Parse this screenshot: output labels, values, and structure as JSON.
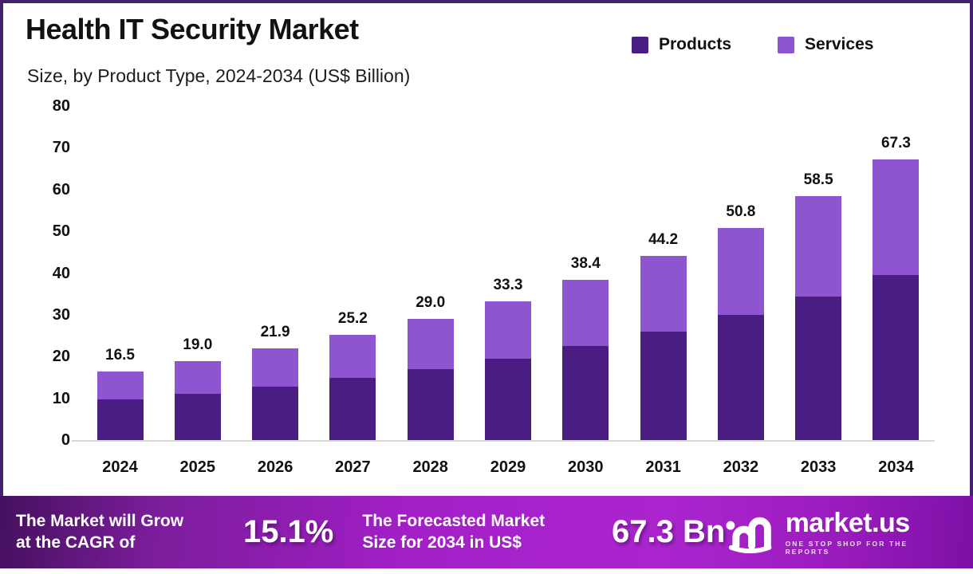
{
  "header": {
    "title": "Health IT Security Market",
    "subtitle": "Size, by Product Type, 2024-2034 (US$ Billion)"
  },
  "legend": [
    {
      "label": "Products",
      "color": "#4a1d82"
    },
    {
      "label": "Services",
      "color": "#8f55d1"
    }
  ],
  "chart_data": {
    "type": "bar",
    "stacked": true,
    "title": "Health IT Security Market",
    "subtitle": "Size, by Product Type, 2024-2034 (US$ Billion)",
    "categories": [
      "2024",
      "2025",
      "2026",
      "2027",
      "2028",
      "2029",
      "2030",
      "2031",
      "2032",
      "2033",
      "2034"
    ],
    "series": [
      {
        "name": "Products",
        "color": "#4a1d82",
        "values": [
          9.8,
          11.1,
          12.8,
          14.9,
          17.0,
          19.4,
          22.5,
          26.0,
          30.0,
          34.3,
          39.5
        ]
      },
      {
        "name": "Services",
        "color": "#8f55d1",
        "values": [
          6.7,
          7.9,
          9.1,
          10.3,
          12.0,
          13.9,
          15.9,
          18.2,
          20.8,
          24.2,
          27.8
        ]
      }
    ],
    "totals": [
      16.5,
      19.0,
      21.9,
      25.2,
      29.0,
      33.3,
      38.4,
      44.2,
      50.8,
      58.5,
      67.3
    ],
    "xlabel": "",
    "ylabel": "",
    "ylim": [
      0,
      80
    ],
    "yticks": [
      0,
      10,
      20,
      30,
      40,
      50,
      60,
      70,
      80
    ],
    "grid": false,
    "legend_position": "top-right"
  },
  "footer": {
    "growth_text_line1": "The Market will Grow",
    "growth_text_line2": "at the CAGR of",
    "cagr_value": "15.1%",
    "forecast_text_line1": "The Forecasted Market",
    "forecast_text_line2": "Size for 2034 in US$",
    "forecast_value": "67.3 Bn",
    "brand_name": "market.us",
    "brand_tagline": "ONE STOP SHOP FOR THE REPORTS"
  }
}
